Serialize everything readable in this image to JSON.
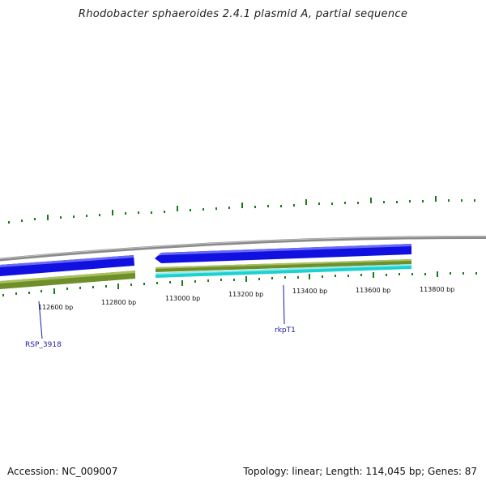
{
  "title": "Rhodobacter sphaeroides 2.4.1 plasmid A, partial sequence",
  "footer": {
    "accession": "Accession: NC_009007",
    "summary": "Topology: linear; Length: 114,045 bp; Genes: 87"
  },
  "axis": {
    "labels": [
      "112600 bp",
      "112800 bp",
      "113000 bp",
      "113200 bp",
      "113400 bp",
      "113600 bp",
      "113800 bp"
    ]
  },
  "genes": [
    {
      "name": "RSP_3918"
    },
    {
      "name": "rkpT1"
    }
  ],
  "colors": {
    "backbone": "#8a8a8a",
    "cds_blue": "#1010e0",
    "gene_olive": "#6f8f2a",
    "cds_cyan": "#20d0d0",
    "tick_green": "#1a7a1a",
    "label_blue": "#1a1aa8"
  }
}
